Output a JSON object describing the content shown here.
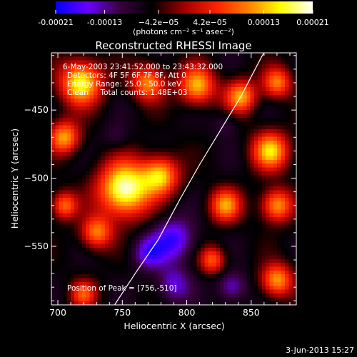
{
  "chart_data": {
    "type": "heatmap",
    "title": "Reconstructed RHESSI Image",
    "xlabel": "Heliocentric X (arcsec)",
    "ylabel": "Heliocentric Y (arcsec)",
    "xlim": [
      695,
      885
    ],
    "ylim": [
      -593,
      -408
    ],
    "x_ticks": [
      700,
      750,
      800,
      850
    ],
    "y_ticks": [
      -450,
      -500,
      -550
    ],
    "colorbar": {
      "unit_label": "(photons cm⁻² s⁻¹ asec⁻²)",
      "ticks": [
        {
          "value": -0.00021,
          "label": "-0.00021"
        },
        {
          "value": -0.00013,
          "label": "-0.00013"
        },
        {
          "value": -4.2e-05,
          "label": "−4.2e−05"
        },
        {
          "value": 4.2e-05,
          "label": "4.2e−05"
        },
        {
          "value": 0.00013,
          "label": "0.00013"
        },
        {
          "value": 0.00021,
          "label": "0.00021"
        }
      ],
      "range": [
        -0.00021,
        0.00021
      ],
      "colors": [
        "#0000ff",
        "#6a00ff",
        "#3a0040",
        "#000000",
        "#a00000",
        "#ff2000",
        "#ff8000",
        "#ffff00",
        "#ffffff"
      ]
    },
    "annotations": [
      "6-May-2003 23:41:52.000 to 23:43:32.000",
      "Detectors: 4F 5F 6F 7F 8F, Att 0",
      "Energy Range: 25.0 - 50.0 keV",
      "Clean     Total counts: 1.48E+03"
    ],
    "peak_label": "Position of Peak = [756,-510]",
    "peak": [
      756,
      -510
    ],
    "limb_curve": [
      [
        744,
        -593
      ],
      [
        760,
        -570
      ],
      [
        778,
        -545
      ],
      [
        795,
        -515
      ],
      [
        810,
        -490
      ],
      [
        826,
        -465
      ],
      [
        842,
        -440
      ],
      [
        858,
        -411
      ],
      [
        862,
        -405
      ]
    ],
    "bright_regions": [
      {
        "x": 752,
        "y": -508,
        "r": 20,
        "v": 0.00021
      },
      {
        "x": 718,
        "y": -430,
        "r": 16,
        "v": 0.00017
      },
      {
        "x": 705,
        "y": -470,
        "r": 12,
        "v": 0.00012
      },
      {
        "x": 780,
        "y": -498,
        "r": 14,
        "v": 0.00013
      },
      {
        "x": 770,
        "y": -430,
        "r": 13,
        "v": 0.00011
      },
      {
        "x": 808,
        "y": -432,
        "r": 14,
        "v": 0.00013
      },
      {
        "x": 842,
        "y": -440,
        "r": 12,
        "v": 0.00012
      },
      {
        "x": 870,
        "y": -430,
        "r": 11,
        "v": 0.0001
      },
      {
        "x": 865,
        "y": -480,
        "r": 14,
        "v": 0.00014
      },
      {
        "x": 870,
        "y": -520,
        "r": 12,
        "v": 0.00012
      },
      {
        "x": 830,
        "y": -520,
        "r": 12,
        "v": 0.00011
      },
      {
        "x": 730,
        "y": -540,
        "r": 12,
        "v": 0.0001
      },
      {
        "x": 705,
        "y": -520,
        "r": 10,
        "v": 9e-05
      },
      {
        "x": 820,
        "y": -560,
        "r": 10,
        "v": 8e-05
      },
      {
        "x": 870,
        "y": -575,
        "r": 12,
        "v": 0.00012
      },
      {
        "x": 720,
        "y": -585,
        "r": 10,
        "v": 7e-05
      }
    ],
    "dark_regions": [
      {
        "x": 790,
        "y": -545,
        "r": 16,
        "v": -0.00018
      },
      {
        "x": 770,
        "y": -555,
        "r": 12,
        "v": -0.00016
      },
      {
        "x": 790,
        "y": -578,
        "r": 13,
        "v": -0.00015
      },
      {
        "x": 835,
        "y": -580,
        "r": 11,
        "v": -0.00015
      },
      {
        "x": 830,
        "y": -460,
        "r": 10,
        "v": -0.0001
      },
      {
        "x": 745,
        "y": -470,
        "r": 10,
        "v": -0.0001
      }
    ]
  },
  "footer_timestamp": "3-Jun-2013 15:27"
}
